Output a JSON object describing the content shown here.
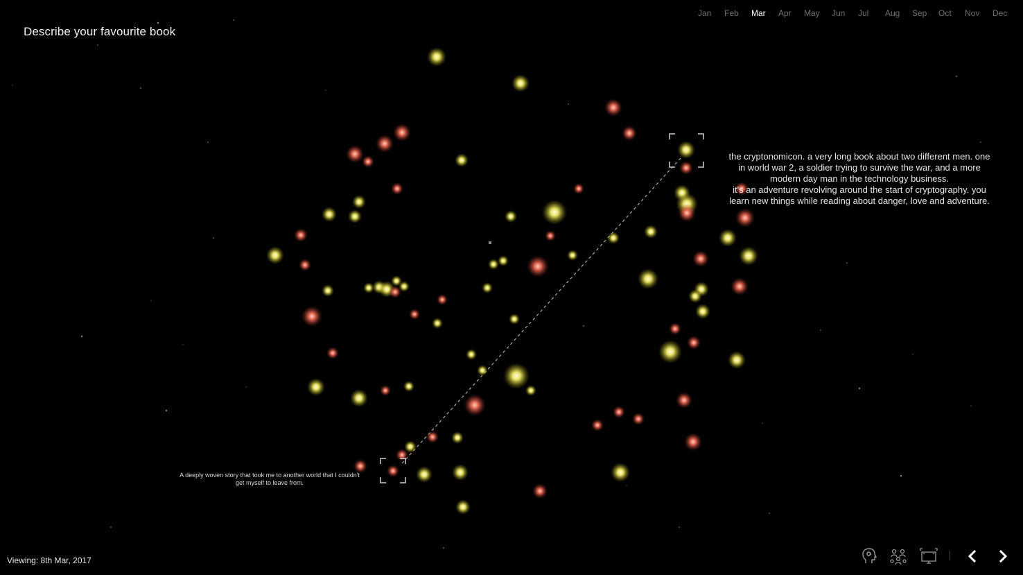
{
  "question": "Describe your favourite book",
  "months": {
    "items": [
      "Jan",
      "Feb",
      "Mar",
      "Apr",
      "May",
      "Jun",
      "Jul",
      "Aug",
      "Sep",
      "Oct",
      "Nov",
      "Dec"
    ],
    "active": "Mar"
  },
  "selected_response": {
    "line1": "the cryptonomicon. a very long book about two different men. one",
    "line2": "in world war 2, a soldier trying to survive the war, and a more",
    "line3": "modern day man in the technology business.",
    "line4": "it's an adventure revolving around the start of cryptography. you",
    "line5": "learn new things while reading about danger, love and adventure."
  },
  "linked_response": {
    "line1": "A deeply woven story that took me to another world that I couldn't",
    "line2": "get myself to leave from."
  },
  "status": {
    "viewing": "Viewing: 8th Mar, 2017"
  },
  "toolbar": {
    "icons": [
      "head-profile-icon",
      "people-network-icon",
      "screen-fullscreen-icon"
    ],
    "prev": "chevron-left-icon",
    "next": "chevron-right-icon"
  },
  "colors": {
    "background": "#000000",
    "yellow_response": "#f0ec6a",
    "red_response": "#f0705a",
    "active_month": "#ffffff",
    "inactive_month": "#6f6f6f"
  }
}
